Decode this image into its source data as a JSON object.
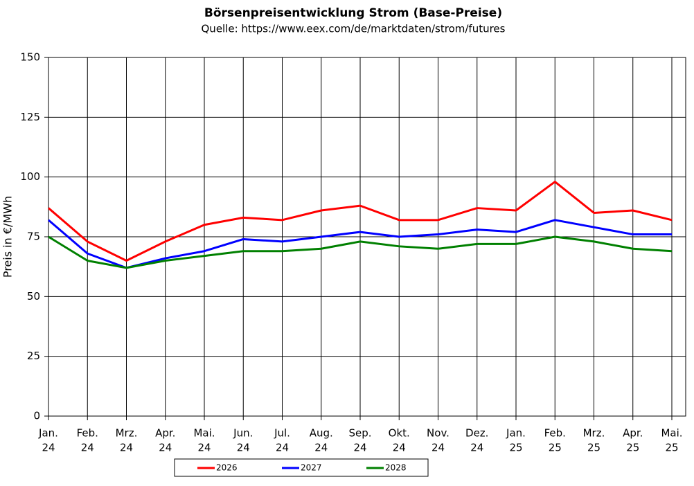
{
  "chart_data": {
    "type": "line",
    "title": "Börsenpreisentwicklung Strom (Base-Preise)",
    "subtitle": "Quelle:  https://www.eex.com/de/marktdaten/strom/futures",
    "y_label": "Preis in €/MWh",
    "categories": [
      [
        "Jan.",
        "24"
      ],
      [
        "Feb.",
        "24"
      ],
      [
        "Mrz.",
        "24"
      ],
      [
        "Apr.",
        "24"
      ],
      [
        "Mai.",
        "24"
      ],
      [
        "Jun.",
        "24"
      ],
      [
        "Jul.",
        "24"
      ],
      [
        "Aug.",
        "24"
      ],
      [
        "Sep.",
        "24"
      ],
      [
        "Okt.",
        "24"
      ],
      [
        "Nov.",
        "24"
      ],
      [
        "Dez.",
        "24"
      ],
      [
        "Jan.",
        "25"
      ],
      [
        "Feb.",
        "25"
      ],
      [
        "Mrz.",
        "25"
      ],
      [
        "Apr.",
        "25"
      ],
      [
        "Mai.",
        "25"
      ]
    ],
    "series": [
      {
        "name": "2026",
        "color": "#ff0000",
        "values": [
          87,
          73,
          65,
          73,
          80,
          83,
          82,
          86,
          88,
          82,
          82,
          87,
          86,
          98,
          85,
          86,
          82
        ]
      },
      {
        "name": "2027",
        "color": "#0000ff",
        "values": [
          82,
          68,
          62,
          66,
          69,
          74,
          73,
          75,
          77,
          75,
          76,
          78,
          77,
          82,
          79,
          76,
          76
        ]
      },
      {
        "name": "2028",
        "color": "#008000",
        "values": [
          75,
          65,
          62,
          65,
          67,
          69,
          69,
          70,
          73,
          71,
          70,
          72,
          72,
          75,
          73,
          70,
          69
        ]
      }
    ],
    "ylim": [
      0,
      150
    ],
    "yticks": [
      0,
      25,
      50,
      75,
      100,
      125,
      150
    ],
    "grid": true,
    "legend": "bottom"
  }
}
